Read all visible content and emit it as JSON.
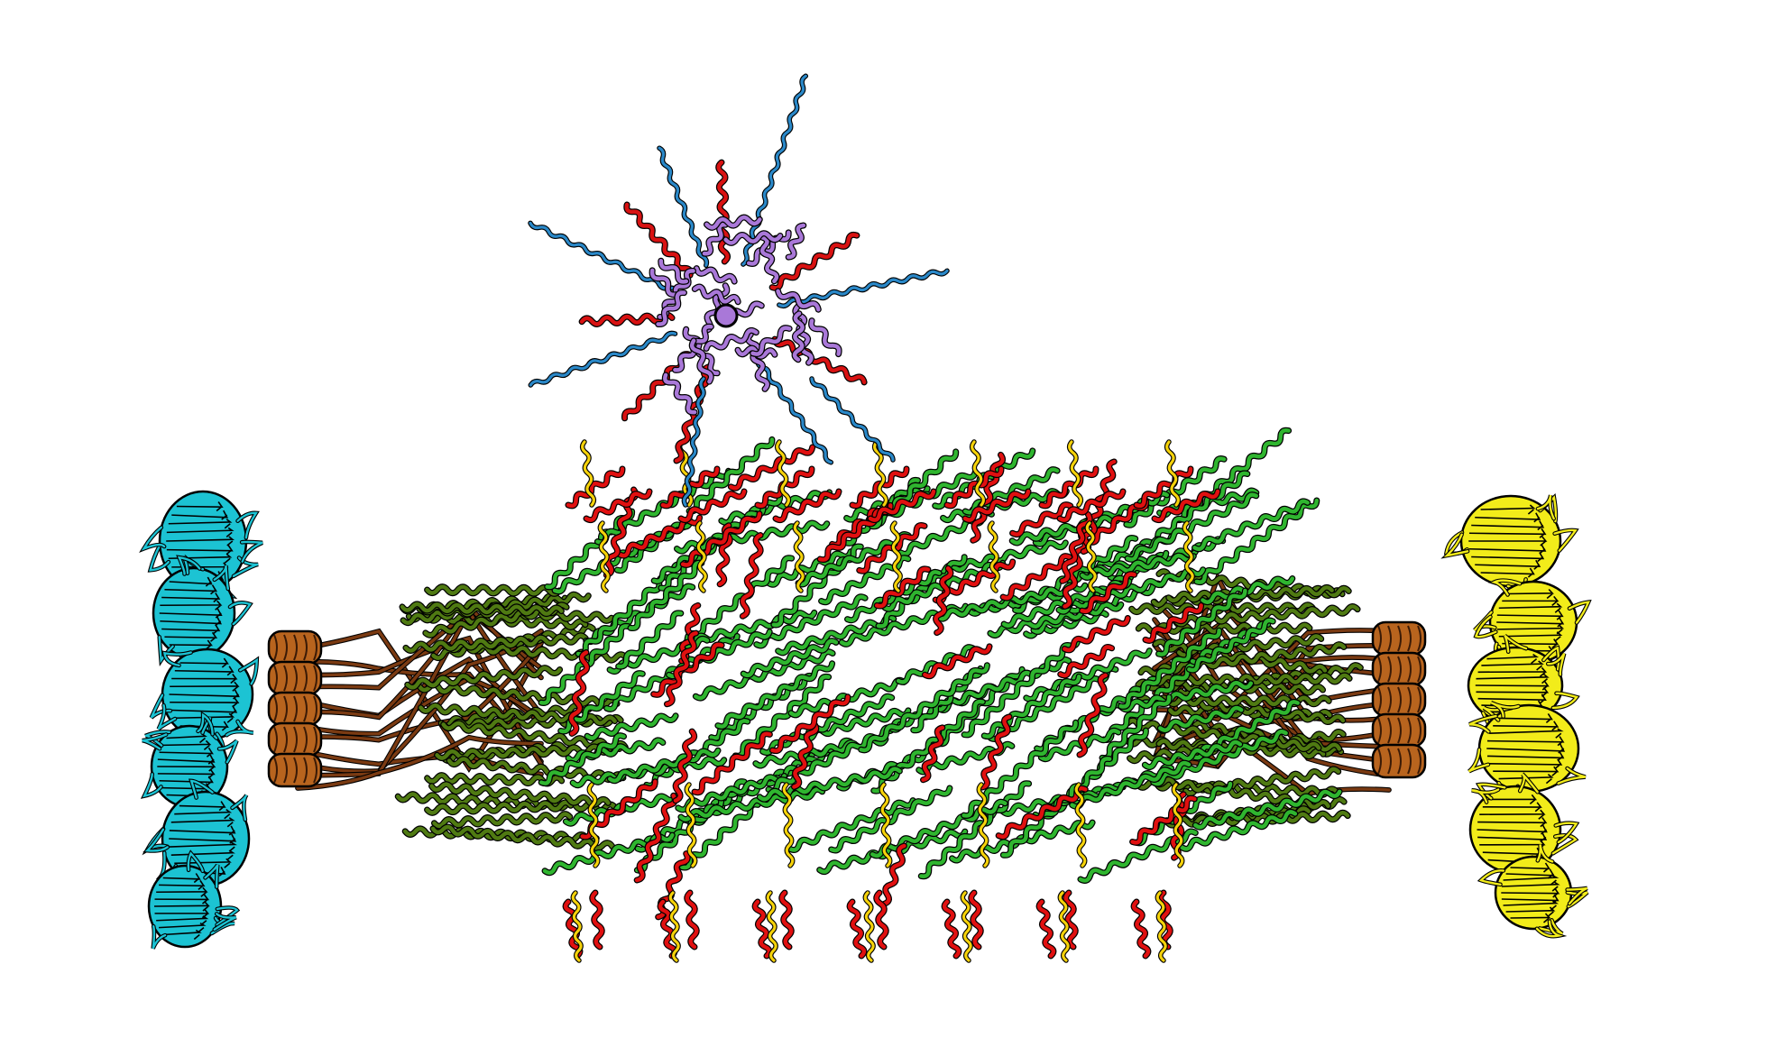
{
  "illustration": {
    "subject": "molecular-assembly-cartoon",
    "palette": {
      "background": "#ffffff",
      "outline": "#000000",
      "core_green": "#2fb52f",
      "core_green_dark": "#4f7a12",
      "core_red": "#e01010",
      "core_yellow": "#f5d20a",
      "linker_brown": "#7a3a12",
      "ring_orange": "#b8641e",
      "left_domain_cyan": "#1cc3d3",
      "right_domain_yellow": "#f2ec1a",
      "top_hub_purple": "#a978d8",
      "top_arm_blue": "#2a88c8",
      "top_arm_red": "#d81212"
    },
    "parts": [
      {
        "id": "top-hub",
        "description_icon": "purple-helical-hub"
      },
      {
        "id": "central-core",
        "description_icon": "green-helical-bundle"
      },
      {
        "id": "left-ring",
        "description_icon": "orange-ring"
      },
      {
        "id": "right-ring",
        "description_icon": "orange-ring"
      },
      {
        "id": "left-domains",
        "description_icon": "cyan-beta-domains"
      },
      {
        "id": "right-domains",
        "description_icon": "yellow-beta-domains"
      }
    ]
  }
}
